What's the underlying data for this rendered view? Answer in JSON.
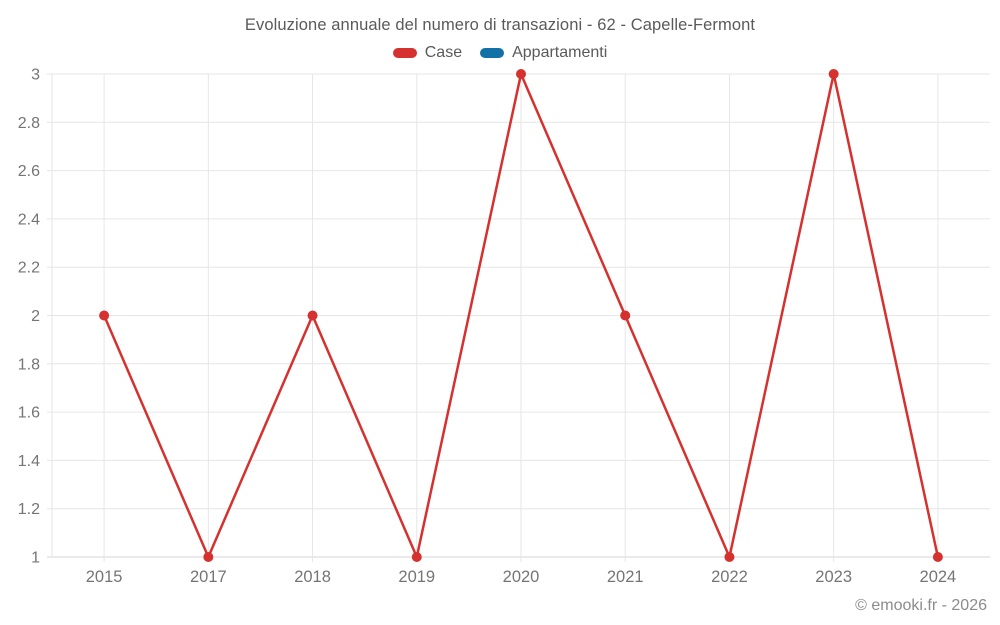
{
  "title": "Evoluzione annuale del numero di transazioni - 62 - Capelle-Fermont",
  "watermark": "© emooki.fr - 2026",
  "colors": {
    "case_red": "#d5312f",
    "appartamenti_blue": "#1271a6",
    "grid": "#e6e6e6",
    "baseline": "#d6d6d6",
    "axis_label": "#757575",
    "title_text": "#5a5a5c",
    "watermark_text": "#8b8b8b",
    "background": "#ffffff"
  },
  "chart_data": {
    "type": "line",
    "title": "Evoluzione annuale del numero di transazioni - 62 - Capelle-Fermont",
    "categories": [
      "2015",
      "2017",
      "2018",
      "2019",
      "2020",
      "2021",
      "2022",
      "2023",
      "2024"
    ],
    "series": [
      {
        "name": "Case",
        "color": "#d5312f",
        "values": [
          2,
          1,
          2,
          1,
          3,
          2,
          1,
          3,
          1
        ]
      },
      {
        "name": "Appartamenti",
        "color": "#1271a6",
        "values": []
      }
    ],
    "xlabel": "",
    "ylabel": "",
    "ylim": [
      1,
      3
    ],
    "ytick_step": 0.2,
    "yticks": [
      1,
      1.2,
      1.4,
      1.6,
      1.8,
      2,
      2.2,
      2.4,
      2.6,
      2.8,
      3
    ],
    "grid": true,
    "legend_position": "top"
  }
}
